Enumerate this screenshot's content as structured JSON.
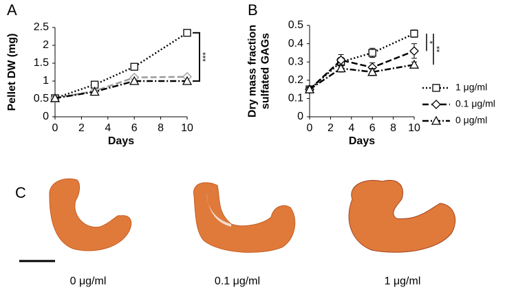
{
  "chart_data": [
    {
      "type": "line",
      "panel_label": "A",
      "ylabel": [
        "Pellet DW (mg)"
      ],
      "xlabel": "Days",
      "x": [
        0,
        3,
        6,
        10
      ],
      "xlim": [
        0,
        10
      ],
      "xticks": [
        0,
        2,
        4,
        6,
        8,
        10
      ],
      "ylim": [
        0,
        2.5
      ],
      "yticks": [
        0,
        0.5,
        1,
        1.5,
        2,
        2.5
      ],
      "series": [
        {
          "color": "#000000",
          "style": "dotted",
          "marker": "square",
          "values": [
            0.52,
            0.9,
            1.4,
            2.35
          ]
        },
        {
          "color": "#999999",
          "style": "dashed",
          "marker": "diamond",
          "values": [
            0.52,
            0.72,
            1.1,
            1.12
          ]
        },
        {
          "color": "#000000",
          "style": "dashdot",
          "marker": "triangle",
          "values": [
            0.52,
            0.7,
            1.0,
            1.0
          ]
        }
      ],
      "significance": [
        {
          "text": "***",
          "between": [
            0,
            2
          ]
        }
      ]
    },
    {
      "type": "line",
      "panel_label": "B",
      "ylabel": [
        "Dry mass fraction",
        "sulfated GAGs"
      ],
      "xlabel": "Days",
      "x": [
        0,
        3,
        6,
        10
      ],
      "xlim": [
        0,
        10
      ],
      "xticks": [
        0,
        2,
        4,
        6,
        8,
        10
      ],
      "ylim": [
        0,
        0.5
      ],
      "yticks": [
        0,
        0.1,
        0.2,
        0.3,
        0.4,
        0.5
      ],
      "legend": "right",
      "series": [
        {
          "name": "1 μg/ml",
          "color": "#000000",
          "style": "dotted",
          "marker": "square",
          "values": [
            0.15,
            0.3,
            0.35,
            0.455
          ],
          "errors": [
            0.015,
            0.025,
            0.025,
            0.02
          ]
        },
        {
          "name": "0.1 μg/ml",
          "color": "#000000",
          "style": "dashed",
          "marker": "diamond",
          "values": [
            0.15,
            0.31,
            0.27,
            0.36
          ],
          "errors": [
            0.01,
            0.03,
            0.025,
            0.04
          ]
        },
        {
          "name": "0 μg/ml",
          "color": "#000000",
          "style": "dashdot",
          "marker": "triangle",
          "values": [
            0.15,
            0.265,
            0.245,
            0.285
          ],
          "errors": [
            0.01,
            0.02,
            0.02,
            0.015
          ]
        }
      ],
      "significance": [
        {
          "text": "*",
          "between": [
            0,
            1
          ]
        },
        {
          "text": "**",
          "between": [
            0,
            2
          ]
        }
      ]
    }
  ],
  "panel_c": {
    "label": "C",
    "captions": [
      "0 μg/ml",
      "0.1 μg/ml",
      "1 μg/ml"
    ]
  }
}
